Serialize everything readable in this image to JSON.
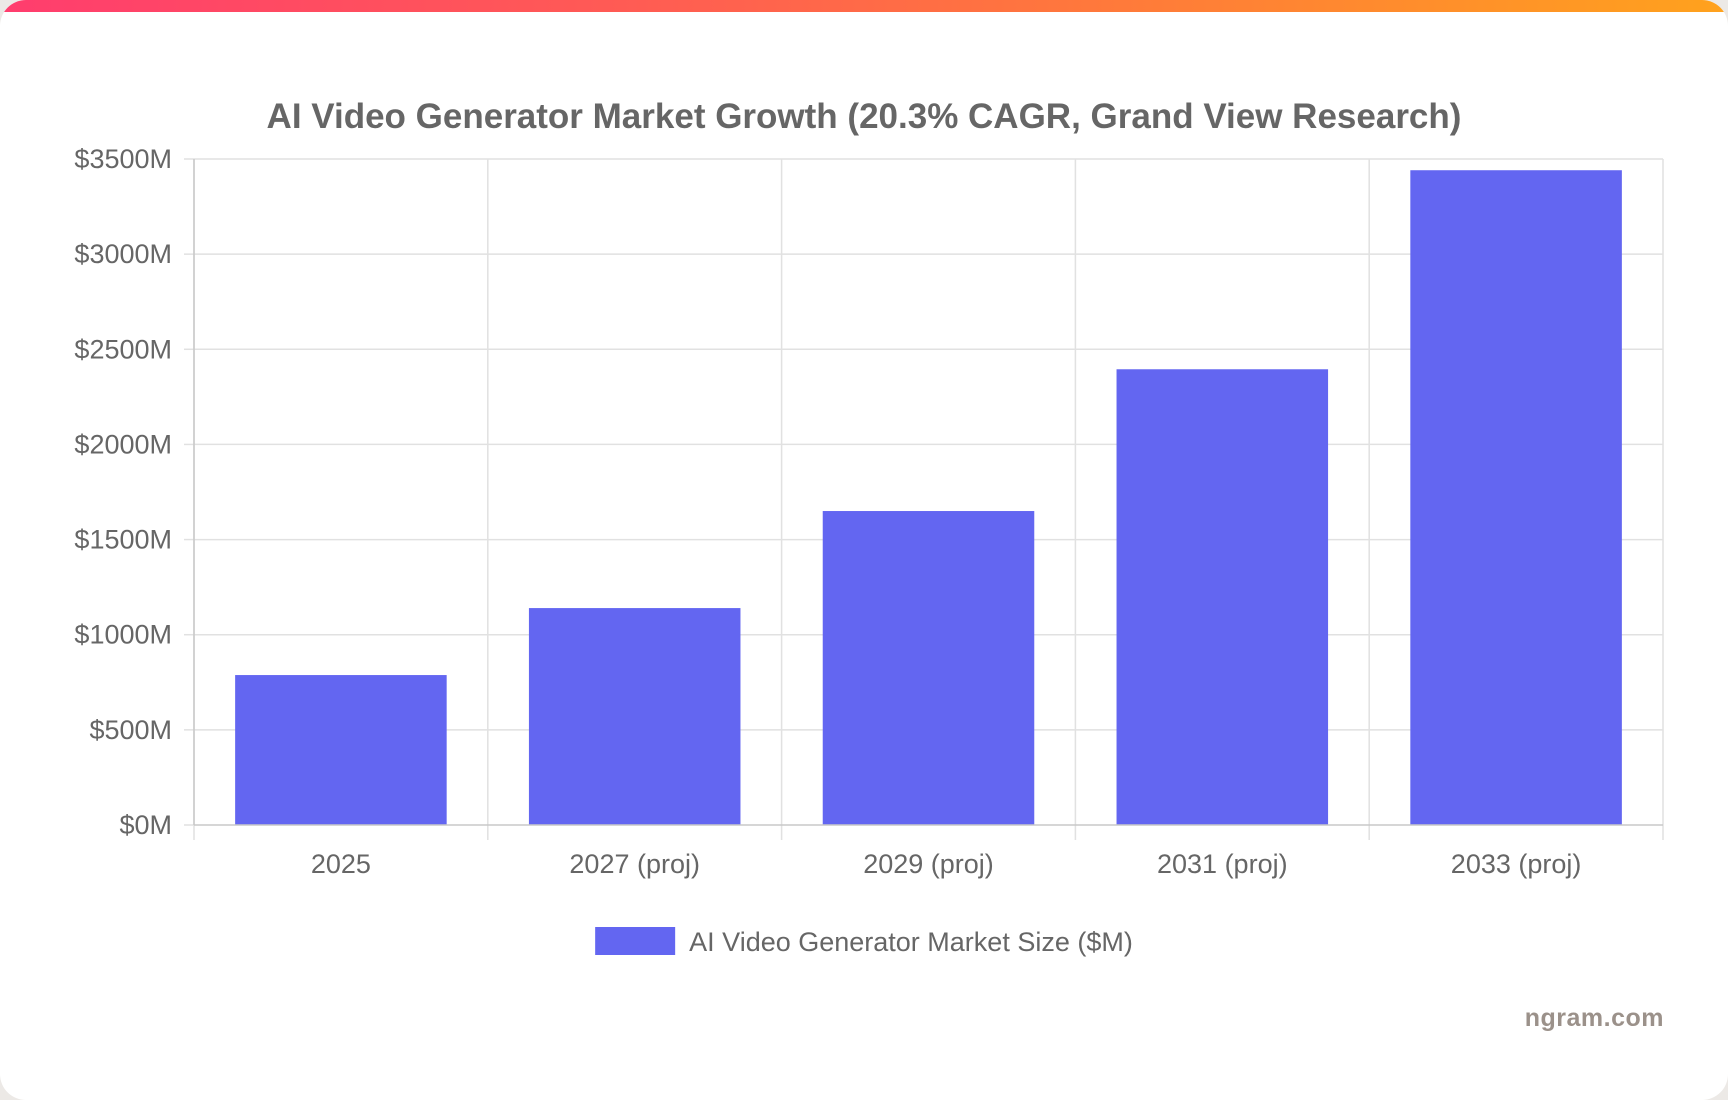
{
  "chart_data": {
    "type": "bar",
    "title": "AI Video Generator Market Growth (20.3% CAGR, Grand View Research)",
    "categories": [
      "2025",
      "2027 (proj)",
      "2029 (proj)",
      "2031 (proj)",
      "2033 (proj)"
    ],
    "series": [
      {
        "name": "AI Video Generator Market Size ($M)",
        "values": [
          788,
          1140,
          1650,
          2395,
          3441
        ],
        "color": "#6366f1"
      }
    ],
    "ylim": [
      0,
      3500
    ],
    "yticks": [
      0,
      500,
      1000,
      1500,
      2000,
      2500,
      3000,
      3500
    ],
    "ytick_labels": [
      "$0M",
      "$500M",
      "$1000M",
      "$1500M",
      "$2000M",
      "$2500M",
      "$3000M",
      "$3500M"
    ],
    "xlabel": "",
    "ylabel": "",
    "grid": true,
    "legend_position": "bottom"
  },
  "footer": {
    "watermark": "ngram.com"
  },
  "colors": {
    "accent_gradient_start": "#ff3d6e",
    "accent_gradient_end": "#ffa21d",
    "bar": "#6366f1",
    "text": "#666666",
    "grid": "#e1e1e1"
  }
}
